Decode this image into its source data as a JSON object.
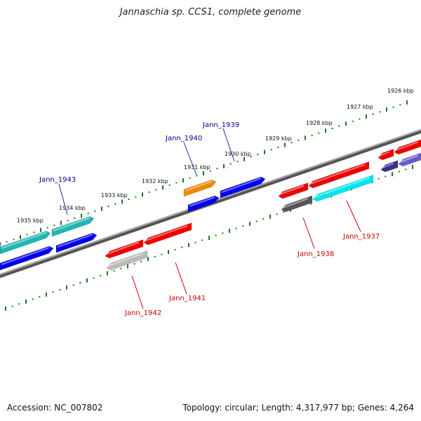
{
  "title": "Jannaschia sp. CCS1, complete genome",
  "footer": {
    "accession": "Accession: NC_007802",
    "topology": "Topology: circular; Length: 4,317,977 bp; Genes: 4,264"
  },
  "ticks": [
    {
      "label": "1926 kbp",
      "kbp": 1926
    },
    {
      "label": "1927 kbp",
      "kbp": 1927
    },
    {
      "label": "1928 kbp",
      "kbp": 1928
    },
    {
      "label": "1929 kbp",
      "kbp": 1929
    },
    {
      "label": "1930 kbp",
      "kbp": 1930
    },
    {
      "label": "1931 kbp",
      "kbp": 1931
    },
    {
      "label": "1932 kbp",
      "kbp": 1932
    },
    {
      "label": "1933 kbp",
      "kbp": 1933
    },
    {
      "label": "1934 kbp",
      "kbp": 1934
    },
    {
      "label": "1935 kbp",
      "kbp": 1935
    }
  ],
  "gene_labels": [
    {
      "name": "Jann_1943",
      "strand": "top",
      "color": "#00008b"
    },
    {
      "name": "Jann_1940",
      "strand": "top",
      "color": "#00008b"
    },
    {
      "name": "Jann_1939",
      "strand": "top",
      "color": "#00008b"
    },
    {
      "name": "Jann_1942",
      "strand": "bottom",
      "color": "#cc0000"
    },
    {
      "name": "Jann_1941",
      "strand": "bottom",
      "color": "#cc0000"
    },
    {
      "name": "Jann_1938",
      "strand": "bottom",
      "color": "#cc0000"
    },
    {
      "name": "Jann_1937",
      "strand": "bottom",
      "color": "#cc0000"
    }
  ],
  "colors": {
    "red": "#ee0000",
    "blue": "#0000ee",
    "teal": "#1fb5b5",
    "cyan": "#00e5ee",
    "orange": "#ee8800",
    "grey": "#555555",
    "lightgrey": "#bbbbbb",
    "purple": "#6a5acd",
    "darkpurple": "#3a2d8b",
    "backbone": "#888888",
    "tick": "#1a7a1a"
  }
}
